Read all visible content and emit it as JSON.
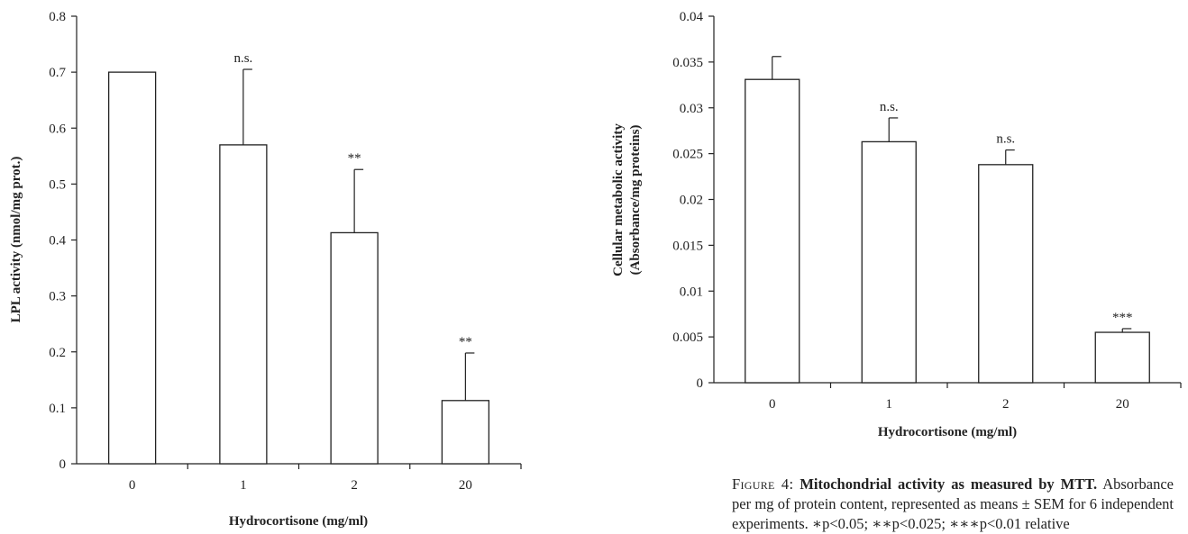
{
  "chart_data": [
    {
      "type": "bar",
      "categories": [
        "0",
        "1",
        "2",
        "20"
      ],
      "values": [
        0.7,
        0.57,
        0.413,
        0.113
      ],
      "errors": [
        0.0,
        0.135,
        0.113,
        0.085
      ],
      "annotations": [
        "",
        "n.s.",
        "**",
        "**"
      ],
      "title": "",
      "xlabel": "Hydrocortisone (mg/ml)",
      "ylabel": "LPL activity (nmol/mg prot.)",
      "ylim": [
        0,
        0.8
      ],
      "yticks": [
        "0",
        "0.1",
        "0.2",
        "0.3",
        "0.4",
        "0.5",
        "0.6",
        "0.7",
        "0.8"
      ],
      "grid": false
    },
    {
      "type": "bar",
      "categories": [
        "0",
        "1",
        "2",
        "20"
      ],
      "values": [
        0.0331,
        0.0263,
        0.0238,
        0.0055
      ],
      "errors": [
        0.0025,
        0.0026,
        0.0016,
        0.0004
      ],
      "annotations": [
        "",
        "n.s.",
        "n.s.",
        "***"
      ],
      "title": "",
      "xlabel": "Hydrocortisone (mg/ml)",
      "ylabel_line1": "Cellular metabolic activity",
      "ylabel_line2": "(Absorbance/mg proteins)",
      "ylim": [
        0,
        0.04
      ],
      "yticks": [
        "0",
        "0.005",
        "0.01",
        "0.015",
        "0.02",
        "0.025",
        "0.03",
        "0.035",
        "0.04"
      ],
      "grid": false
    }
  ],
  "caption": {
    "label": "Figure 4:",
    "bold_title": "Mitochondrial activity as measured by MTT.",
    "rest": " Absorbance per mg of protein content, represented as means ± SEM for 6 independent experiments. ∗p<0.05; ∗∗p<0.025; ∗∗∗p<0.01 relative"
  }
}
